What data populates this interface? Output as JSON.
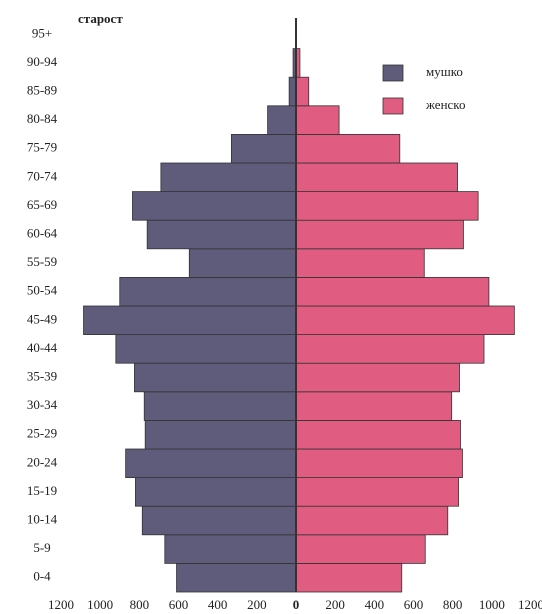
{
  "chart_data": {
    "type": "pyramid",
    "title": "старост",
    "categories": [
      "0-4",
      "5-9",
      "10-14",
      "15-19",
      "20-24",
      "25-29",
      "30-34",
      "35-39",
      "40-44",
      "45-49",
      "50-54",
      "55-59",
      "60-64",
      "65-69",
      "70-74",
      "75-79",
      "80-84",
      "85-89",
      "90-94",
      "95+"
    ],
    "series": [
      {
        "name": "мушко",
        "color": "#5f5b7a",
        "side": "left",
        "values": [
          610,
          670,
          785,
          820,
          870,
          770,
          775,
          825,
          920,
          1085,
          900,
          545,
          760,
          835,
          690,
          330,
          145,
          35,
          15,
          0
        ]
      },
      {
        "name": "женско",
        "color": "#e05c80",
        "side": "right",
        "values": [
          540,
          660,
          775,
          830,
          850,
          840,
          795,
          835,
          960,
          1115,
          985,
          655,
          855,
          930,
          825,
          530,
          220,
          65,
          20,
          0
        ]
      }
    ],
    "xlim": [
      -1200,
      1200
    ],
    "xticks": [
      {
        "value": -1200,
        "label": "1200"
      },
      {
        "value": -1000,
        "label": "1000"
      },
      {
        "value": -800,
        "label": "800"
      },
      {
        "value": -600,
        "label": "600"
      },
      {
        "value": -400,
        "label": "400"
      },
      {
        "value": -200,
        "label": "200"
      },
      0,
      200,
      400,
      600,
      800,
      1000,
      1200
    ],
    "legend": "top-right"
  }
}
